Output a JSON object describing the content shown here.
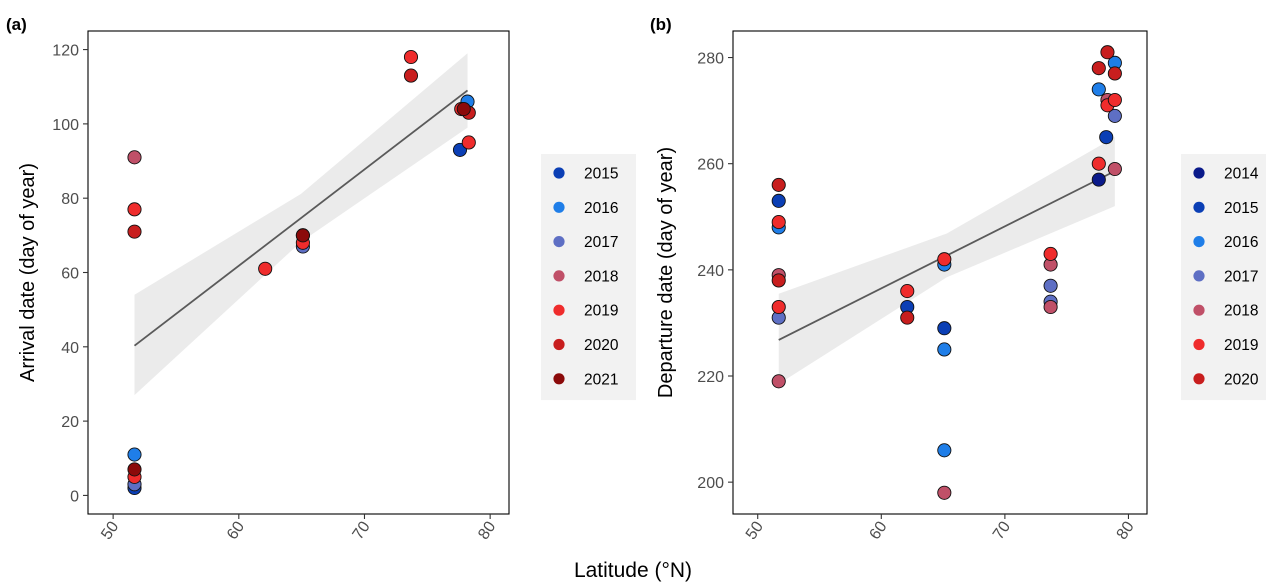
{
  "shared_xlabel": "Latitude (°N)",
  "chart_data": [
    {
      "type": "scatter",
      "panel_label": "(a)",
      "xlabel": "",
      "ylabel": "Arrival date (day of year)",
      "xlim": [
        48,
        81.5
      ],
      "ylim": [
        -5,
        125
      ],
      "xticks": [
        50,
        60,
        70,
        80
      ],
      "yticks": [
        0,
        20,
        40,
        60,
        80,
        100,
        120
      ],
      "grid": false,
      "legend_position": "right",
      "trend": {
        "x": [
          51.7,
          78.2
        ],
        "y": [
          40.3,
          109
        ],
        "ci_lower": [
          27,
          99
        ],
        "ci_upper": [
          54,
          119
        ]
      },
      "series": [
        {
          "name": "2015",
          "color": "#0b3fb5",
          "points": [
            [
              51.7,
              2
            ],
            [
              65.1,
              70
            ],
            [
              77.6,
              93
            ]
          ]
        },
        {
          "name": "2016",
          "color": "#1f7ee8",
          "points": [
            [
              51.7,
              11
            ],
            [
              78.2,
              106
            ]
          ]
        },
        {
          "name": "2017",
          "color": "#5e6fc4",
          "points": [
            [
              51.7,
              3
            ],
            [
              65.1,
              67
            ]
          ]
        },
        {
          "name": "2018",
          "color": "#c05068",
          "points": [
            [
              51.7,
              91
            ]
          ]
        },
        {
          "name": "2019",
          "color": "#ef2c2c",
          "points": [
            [
              51.7,
              5
            ],
            [
              51.7,
              77
            ],
            [
              62.1,
              61
            ],
            [
              65.1,
              68
            ],
            [
              73.7,
              118
            ],
            [
              77.7,
              104
            ],
            [
              78.3,
              95
            ]
          ]
        },
        {
          "name": "2020",
          "color": "#c81e1e",
          "points": [
            [
              51.7,
              71
            ],
            [
              73.7,
              113
            ],
            [
              78.3,
              103
            ]
          ]
        },
        {
          "name": "2021",
          "color": "#8b0a0a",
          "points": [
            [
              51.7,
              7
            ],
            [
              65.1,
              70
            ],
            [
              77.9,
              104
            ]
          ]
        }
      ]
    },
    {
      "type": "scatter",
      "panel_label": "(b)",
      "xlabel": "",
      "ylabel": "Departure date (day of year)",
      "xlim": [
        48,
        81.5
      ],
      "ylim": [
        194,
        285
      ],
      "xticks": [
        50,
        60,
        70,
        80
      ],
      "yticks": [
        200,
        220,
        240,
        260,
        280
      ],
      "grid": false,
      "legend_position": "right",
      "trend": {
        "x": [
          51.7,
          78.9
        ],
        "y": [
          226.8,
          258.6
        ],
        "ci_lower": [
          218.5,
          252
        ],
        "ci_upper": [
          235.5,
          265
        ]
      },
      "series": [
        {
          "name": "2014",
          "color": "#0a1a8a",
          "points": [
            [
              77.6,
              257
            ]
          ]
        },
        {
          "name": "2015",
          "color": "#0b3fb5",
          "points": [
            [
              51.7,
              253
            ],
            [
              62.1,
              233
            ],
            [
              65.1,
              229
            ],
            [
              78.2,
              265
            ]
          ]
        },
        {
          "name": "2016",
          "color": "#1f7ee8",
          "points": [
            [
              51.7,
              248
            ],
            [
              65.1,
              241
            ],
            [
              65.1,
              225
            ],
            [
              65.1,
              206
            ],
            [
              77.6,
              274
            ],
            [
              78.9,
              279
            ]
          ]
        },
        {
          "name": "2017",
          "color": "#5e6fc4",
          "points": [
            [
              51.7,
              231
            ],
            [
              73.7,
              237
            ],
            [
              73.7,
              234
            ],
            [
              78.9,
              269
            ]
          ]
        },
        {
          "name": "2018",
          "color": "#c05068",
          "points": [
            [
              51.7,
              239
            ],
            [
              51.7,
              219
            ],
            [
              65.1,
              198
            ],
            [
              73.7,
              233
            ],
            [
              73.7,
              241
            ],
            [
              78.9,
              259
            ],
            [
              78.3,
              272
            ]
          ]
        },
        {
          "name": "2019",
          "color": "#ef2c2c",
          "points": [
            [
              51.7,
              249
            ],
            [
              51.7,
              233
            ],
            [
              62.1,
              236
            ],
            [
              65.1,
              242
            ],
            [
              73.7,
              243
            ],
            [
              77.6,
              260
            ],
            [
              78.3,
              271
            ],
            [
              78.9,
              272
            ]
          ]
        },
        {
          "name": "2020",
          "color": "#c81e1e",
          "points": [
            [
              51.7,
              256
            ],
            [
              51.7,
              238
            ],
            [
              62.1,
              231
            ],
            [
              77.6,
              278
            ],
            [
              78.3,
              281
            ],
            [
              78.9,
              277
            ]
          ]
        }
      ]
    }
  ]
}
